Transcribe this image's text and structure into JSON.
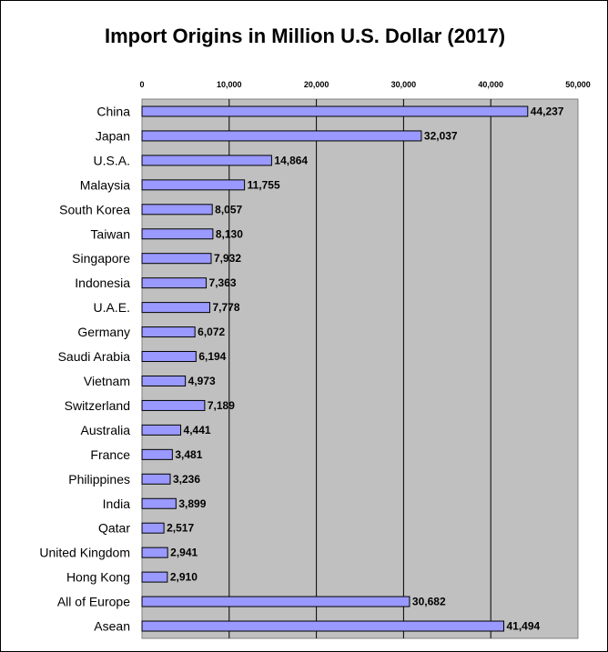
{
  "chart_data": {
    "type": "bar",
    "orientation": "horizontal",
    "title": "Import Origins in Million U.S. Dollar (2017)",
    "xlabel": "",
    "ylabel": "",
    "xlim": [
      0,
      50000
    ],
    "x_ticks": [
      0,
      10000,
      20000,
      30000,
      40000,
      50000
    ],
    "x_tick_labels": [
      "0",
      "10,000",
      "20,000",
      "30,000",
      "40,000",
      "50,000"
    ],
    "x_axis_position": "top",
    "grid": "vertical",
    "legend": "none",
    "categories": [
      "China",
      "Japan",
      "U.S.A.",
      "Malaysia",
      "South Korea",
      "Taiwan",
      "Singapore",
      "Indonesia",
      "U.A.E.",
      "Germany",
      "Saudi Arabia",
      "Vietnam",
      "Switzerland",
      "Australia",
      "France",
      "Philippines",
      "India",
      "Qatar",
      "United Kingdom",
      "Hong Kong",
      "All of Europe",
      "Asean"
    ],
    "values": [
      44237,
      32037,
      14864,
      11755,
      8057,
      8130,
      7932,
      7363,
      7778,
      6072,
      6194,
      4973,
      7189,
      4441,
      3481,
      3236,
      3899,
      2517,
      2941,
      2910,
      30682,
      41494
    ],
    "value_labels": [
      "44,237",
      "32,037",
      "14,864",
      "11,755",
      "8,057",
      "8,130",
      "7,932",
      "7,363",
      "7,778",
      "6,072",
      "6,194",
      "4,973",
      "7,189",
      "4,441",
      "3,481",
      "3,236",
      "3,899",
      "2,517",
      "2,941",
      "2,910",
      "30,682",
      "41,494"
    ],
    "colors": {
      "bar_fill": "#9999FF",
      "bar_stroke": "#000000",
      "plot_background": "#C0C0C0",
      "gridline": "#000000"
    }
  }
}
